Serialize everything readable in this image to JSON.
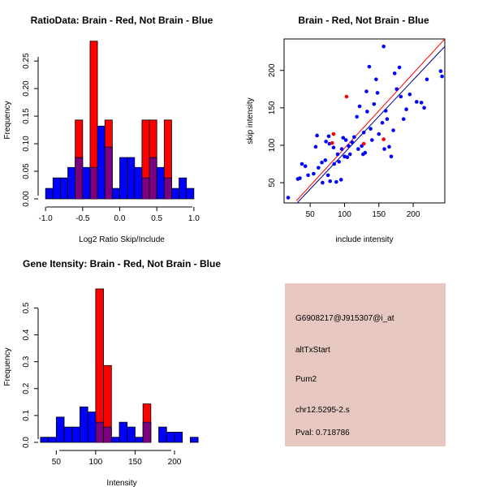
{
  "colors": {
    "brain": "#ff0000",
    "not_brain": "#0000ff",
    "overlap": "#7f007f",
    "panel_bg": "#e6c8c0",
    "pval": "#8b0000",
    "hist_border": "#000000",
    "brain_line": "#ff0000",
    "not_brain_line": "#00008b"
  },
  "chart_data": [
    {
      "id": "ratio-hist",
      "type": "bar",
      "title": "RatioData: Brain - Red, Not Brain - Blue",
      "xlabel": "Log2 Ratio Skip/Include",
      "ylabel": "Frequency",
      "xlim": [
        -1.1,
        1.1
      ],
      "ylim": [
        0,
        0.29
      ],
      "xticks": [
        -1.0,
        -0.5,
        0.0,
        0.5,
        1.0
      ],
      "xtick_labels": [
        "-1.0",
        "-0.5",
        "0.0",
        "0.5",
        "1.0"
      ],
      "yticks": [
        0.0,
        0.05,
        0.1,
        0.15,
        0.2,
        0.25
      ],
      "ytick_labels": [
        "0.00",
        "0.05",
        "0.10",
        "0.15",
        "0.20",
        "0.25"
      ],
      "bin_start": -1.0,
      "bin_width": 0.1,
      "series": [
        {
          "name": "Brain",
          "color": "#ff0000",
          "values": [
            0,
            0,
            0,
            0,
            0.143,
            0,
            0.286,
            0,
            0.143,
            0,
            0,
            0,
            0,
            0.143,
            0.143,
            0,
            0.143,
            0,
            0,
            0
          ]
        },
        {
          "name": "Not Brain",
          "color": "#0000ff",
          "values": [
            0.019,
            0.038,
            0.038,
            0.057,
            0.075,
            0.057,
            0.057,
            0.132,
            0.094,
            0.019,
            0.075,
            0.075,
            0.057,
            0.038,
            0.075,
            0.057,
            0.038,
            0.019,
            0.038,
            0.019
          ]
        }
      ]
    },
    {
      "id": "scatter",
      "type": "scatter",
      "title": "Brain - Red, Not Brain - Blue",
      "xlabel": "include intensity",
      "ylabel": "skip intensity",
      "xlim": [
        12,
        246
      ],
      "ylim": [
        23,
        242
      ],
      "xticks": [
        50,
        100,
        150,
        200
      ],
      "xtick_labels": [
        "50",
        "100",
        "150",
        "200"
      ],
      "yticks": [
        50,
        100,
        150,
        200
      ],
      "ytick_labels": [
        "50",
        "100",
        "150",
        "200"
      ],
      "series": [
        {
          "name": "Not Brain",
          "color": "#0000ff",
          "points": [
            [
              18,
              30
            ],
            [
              32,
              55
            ],
            [
              35,
              56
            ],
            [
              38,
              75
            ],
            [
              43,
              72
            ],
            [
              47,
              60
            ],
            [
              55,
              62
            ],
            [
              58,
              98
            ],
            [
              60,
              113
            ],
            [
              62,
              70
            ],
            [
              67,
              77
            ],
            [
              68,
              50
            ],
            [
              72,
              80
            ],
            [
              73,
              105
            ],
            [
              76,
              60
            ],
            [
              77,
              112
            ],
            [
              78,
              102
            ],
            [
              79,
              52
            ],
            [
              84,
              97
            ],
            [
              85,
              75
            ],
            [
              88,
              51
            ],
            [
              90,
              88
            ],
            [
              92,
              78
            ],
            [
              95,
              54
            ],
            [
              96,
              95
            ],
            [
              98,
              110
            ],
            [
              100,
              85
            ],
            [
              102,
              107
            ],
            [
              104,
              84
            ],
            [
              106,
              99
            ],
            [
              108,
              88
            ],
            [
              111,
              104
            ],
            [
              114,
              111
            ],
            [
              118,
              138
            ],
            [
              120,
              95
            ],
            [
              122,
              152
            ],
            [
              125,
              99
            ],
            [
              127,
              88
            ],
            [
              128,
              117
            ],
            [
              130,
              90
            ],
            [
              132,
              172
            ],
            [
              133,
              145
            ],
            [
              136,
              205
            ],
            [
              138,
              122
            ],
            [
              140,
              107
            ],
            [
              143,
              155
            ],
            [
              146,
              188
            ],
            [
              148,
              170
            ],
            [
              150,
              115
            ],
            [
              155,
              130
            ],
            [
              157,
              232
            ],
            [
              158,
              95
            ],
            [
              160,
              146
            ],
            [
              162,
              135
            ],
            [
              165,
              98
            ],
            [
              168,
              85
            ],
            [
              171,
              120
            ],
            [
              173,
              196
            ],
            [
              176,
              175
            ],
            [
              180,
              204
            ],
            [
              182,
              165
            ],
            [
              186,
              135
            ],
            [
              190,
              148
            ],
            [
              195,
              168
            ],
            [
              205,
              158
            ],
            [
              212,
              157
            ],
            [
              216,
              150
            ],
            [
              220,
              188
            ],
            [
              240,
              199
            ],
            [
              242,
              192
            ]
          ]
        },
        {
          "name": "Brain",
          "color": "#ff0000",
          "points": [
            [
              82,
              103
            ],
            [
              84,
              115
            ],
            [
              103,
              165
            ],
            [
              128,
              102
            ],
            [
              157,
              108
            ]
          ]
        }
      ],
      "fit_lines": [
        {
          "name": "Brain",
          "color": "#ff0000",
          "from": [
            30,
            26
          ],
          "to": [
            246,
            242
          ]
        },
        {
          "name": "Not Brain",
          "color": "#00008b",
          "from": [
            30,
            22
          ],
          "to": [
            246,
            232
          ]
        }
      ]
    },
    {
      "id": "gene-hist",
      "type": "bar",
      "title": "Gene Itensity: Brain - Red, Not Brain - Blue",
      "xlabel": "Intensity",
      "ylabel": "Frequency",
      "xlim": [
        27,
        234
      ],
      "ylim": [
        0,
        0.595
      ],
      "xticks": [
        50,
        100,
        150,
        200
      ],
      "xtick_labels": [
        "50",
        "100",
        "150",
        "200"
      ],
      "yticks": [
        0.0,
        0.1,
        0.2,
        0.3,
        0.4,
        0.5
      ],
      "ytick_labels": [
        "0.0",
        "0.1",
        "0.2",
        "0.3",
        "0.4",
        "0.5"
      ],
      "bin_start": 30,
      "bin_width": 10,
      "series": [
        {
          "name": "Brain",
          "color": "#ff0000",
          "values": [
            0,
            0,
            0,
            0,
            0,
            0,
            0,
            0.571,
            0.286,
            0,
            0,
            0,
            0,
            0.143,
            0,
            0,
            0,
            0,
            0,
            0
          ]
        },
        {
          "name": "Not Brain",
          "color": "#0000ff",
          "values": [
            0.019,
            0.019,
            0.094,
            0.057,
            0.057,
            0.132,
            0.113,
            0.075,
            0.057,
            0.019,
            0.075,
            0.057,
            0.019,
            0.075,
            0,
            0.057,
            0.038,
            0.038,
            0,
            0.019
          ]
        }
      ]
    }
  ],
  "info": {
    "probe": "G6908217@J915307@i_at",
    "event_type": "altTxStart",
    "gene": "Pum2",
    "locus": "chr12.5295-2.s",
    "pval": "Pval: 0.718786"
  }
}
